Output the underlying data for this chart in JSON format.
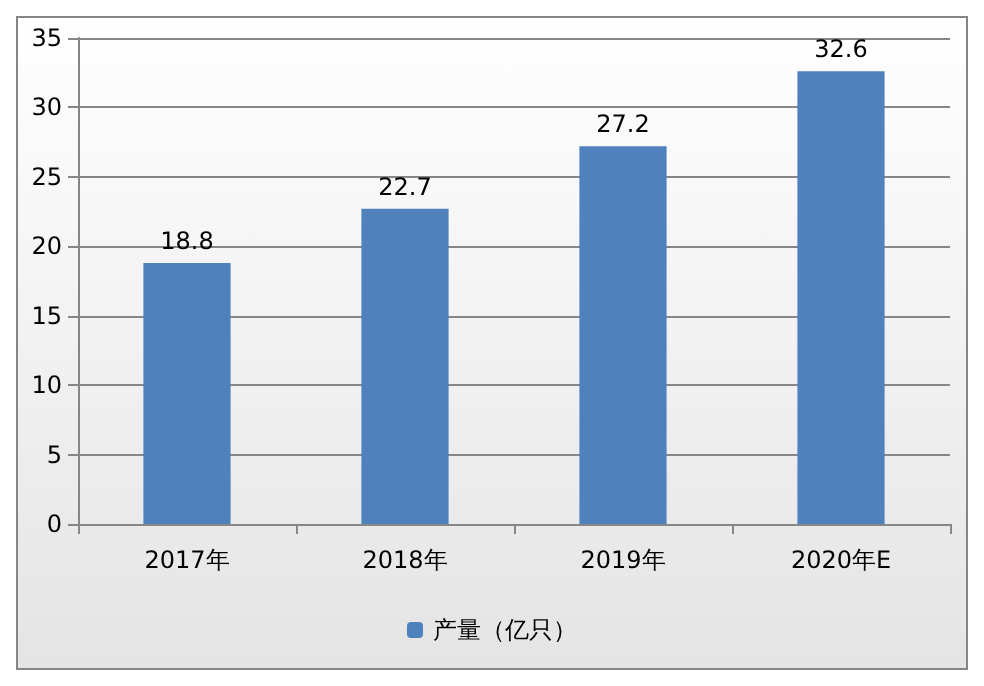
{
  "chart_data": {
    "type": "bar",
    "categories": [
      "2017年",
      "2018年",
      "2019年",
      "2020年E"
    ],
    "series": [
      {
        "name": "产量（亿只）",
        "color": "#4f81bd",
        "values": [
          18.8,
          22.7,
          27.2,
          32.6
        ]
      }
    ],
    "ylim": [
      0,
      35
    ],
    "yticks": [
      0,
      5,
      10,
      15,
      20,
      25,
      30,
      35
    ],
    "grid": "y",
    "legend": "bottom",
    "data_labels": true
  }
}
